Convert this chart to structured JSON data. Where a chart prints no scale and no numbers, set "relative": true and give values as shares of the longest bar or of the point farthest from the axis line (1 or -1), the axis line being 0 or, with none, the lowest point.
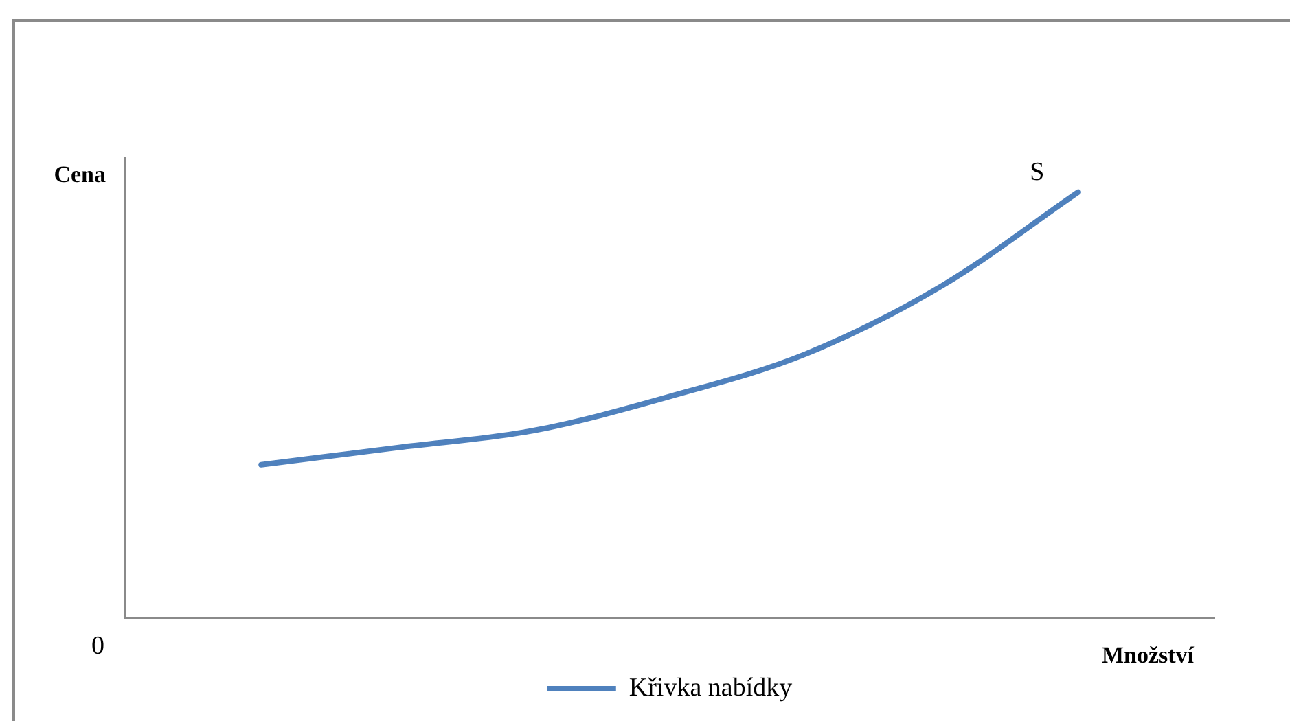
{
  "chart_data": {
    "type": "line",
    "relative": true,
    "xlabel": "Množství",
    "ylabel": "Cena",
    "categories": [
      null,
      null,
      null,
      null,
      null,
      null,
      null,
      null,
      null
    ],
    "series": [
      {
        "name": "Křivka nabídky",
        "color": "#4f81bd",
        "values": [
          null,
          0.36,
          0.4,
          0.44,
          0.52,
          0.62,
          0.78,
          1,
          null
        ]
      }
    ],
    "annotations": [
      "S",
      "0"
    ],
    "legend": "bottom",
    "grid": false,
    "marker": "none",
    "line_style": "solid"
  }
}
